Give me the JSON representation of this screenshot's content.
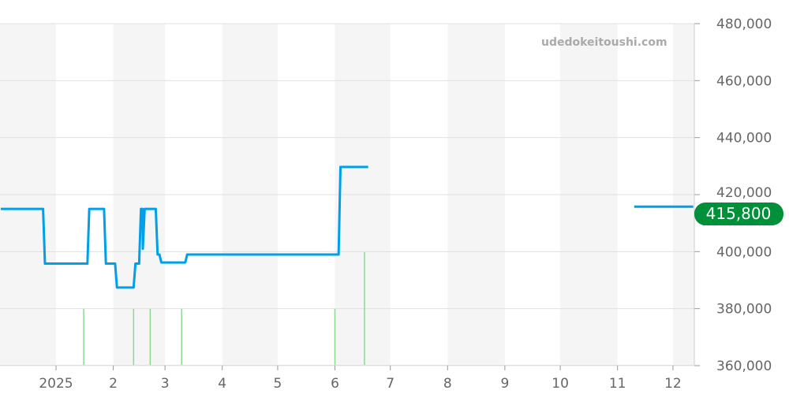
{
  "watermark": "udedokeitoushi.com",
  "chart_data": {
    "type": "line",
    "title": "",
    "xlabel": "",
    "ylabel": "",
    "xlim": [
      "2024-12-01",
      "2025-12-12"
    ],
    "ylim": [
      360000,
      480000
    ],
    "y_ticks": [
      "360,000",
      "380,000",
      "400,000",
      "420,000",
      "440,000",
      "460,000",
      "480,000"
    ],
    "x_ticks": [
      {
        "date": "2025-01-01",
        "label": "2025"
      },
      {
        "date": "2025-02-01",
        "label": "2"
      },
      {
        "date": "2025-03-01",
        "label": "3"
      },
      {
        "date": "2025-04-01",
        "label": "4"
      },
      {
        "date": "2025-05-01",
        "label": "5"
      },
      {
        "date": "2025-06-01",
        "label": "6"
      },
      {
        "date": "2025-07-01",
        "label": "7"
      },
      {
        "date": "2025-08-01",
        "label": "8"
      },
      {
        "date": "2025-09-01",
        "label": "9"
      },
      {
        "date": "2025-10-01",
        "label": "10"
      },
      {
        "date": "2025-11-01",
        "label": "11"
      },
      {
        "date": "2025-12-01",
        "label": "12"
      }
    ],
    "grid": true,
    "alternate_month_shading": true,
    "colors": {
      "line": "#00a0e9",
      "volume": "#8fd694",
      "badge": "#009039",
      "shade": "#f5f5f5",
      "grid": "#e0e0e0"
    },
    "series": [
      {
        "points": [
          [
            "2024-12-01",
            415000
          ],
          [
            "2024-12-25",
            415000
          ],
          [
            "2024-12-26",
            395800
          ],
          [
            "2025-01-18",
            395800
          ],
          [
            "2025-01-19",
            415000
          ],
          [
            "2025-01-27",
            415000
          ],
          [
            "2025-01-28",
            395800
          ],
          [
            "2025-02-02",
            395800
          ],
          [
            "2025-02-03",
            387400
          ],
          [
            "2025-02-12",
            387400
          ],
          [
            "2025-02-13",
            395800
          ],
          [
            "2025-02-15",
            395800
          ],
          [
            "2025-02-16",
            415000
          ],
          [
            "2025-02-16T20:00",
            415000
          ],
          [
            "2025-02-17",
            401000
          ],
          [
            "2025-02-18",
            415000
          ],
          [
            "2025-02-24",
            415000
          ],
          [
            "2025-02-25",
            399000
          ],
          [
            "2025-02-26",
            399000
          ],
          [
            "2025-02-27",
            396200
          ],
          [
            "2025-03-12",
            396200
          ],
          [
            "2025-03-13",
            399000
          ],
          [
            "2025-06-03",
            399000
          ],
          [
            "2025-06-04",
            429700
          ],
          [
            "2025-06-19",
            429700
          ]
        ]
      },
      {
        "points": [
          [
            "2025-11-10",
            415800
          ],
          [
            "2025-12-12",
            415800
          ]
        ]
      }
    ],
    "volume": [
      {
        "date": "2025-01-16",
        "value": 1
      },
      {
        "date": "2025-02-12",
        "value": 1
      },
      {
        "date": "2025-02-21",
        "value": 1
      },
      {
        "date": "2025-03-10",
        "value": 1
      },
      {
        "date": "2025-06-01",
        "value": 1
      },
      {
        "date": "2025-06-17",
        "value": 2
      }
    ],
    "current_value": "415,800"
  }
}
